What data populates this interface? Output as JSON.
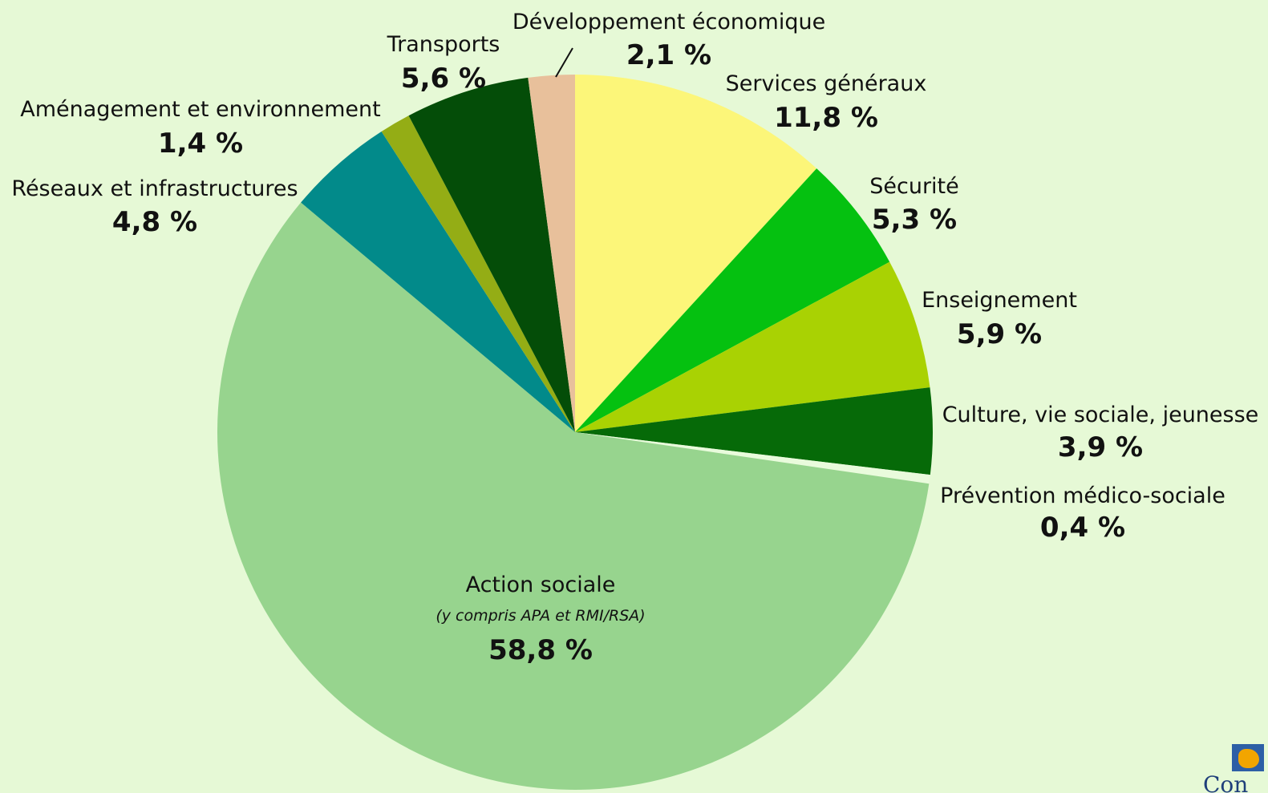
{
  "chart_data": {
    "type": "pie",
    "title": "",
    "start_angle_deg": 0,
    "direction": "clockwise",
    "slices": [
      {
        "label": "Services généraux",
        "value": 11.8,
        "value_label": "11,8 %",
        "color": "#fcf679"
      },
      {
        "label": "Sécurité",
        "value": 5.3,
        "value_label": "5,3 %",
        "color": "#05c110"
      },
      {
        "label": "Enseignement",
        "value": 5.9,
        "value_label": "5,9 %",
        "color": "#a9d203"
      },
      {
        "label": "Culture, vie sociale, jeunesse",
        "value": 3.9,
        "value_label": "3,9 %",
        "color": "#066a08"
      },
      {
        "label": "Prévention médico-sociale",
        "value": 0.4,
        "value_label": "0,4 %",
        "color": "#e9fbdc"
      },
      {
        "label": "Action sociale",
        "note": "(y compris APA et RMI/RSA)",
        "value": 58.8,
        "value_label": "58,8 %",
        "color": "#97d48e"
      },
      {
        "label": "Réseaux et infrastructures",
        "value": 4.8,
        "value_label": "4,8 %",
        "color": "#028a8a"
      },
      {
        "label": "Aménagement et environnement",
        "value": 1.4,
        "value_label": "1,4 %",
        "color": "#94ad15"
      },
      {
        "label": "Transports",
        "value": 5.6,
        "value_label": "5,6 %",
        "color": "#044d08"
      },
      {
        "label": "Développement économique",
        "value": 2.1,
        "value_label": "2,1 %",
        "color": "#e8c09b"
      }
    ]
  },
  "logo": {
    "text": "Con"
  }
}
